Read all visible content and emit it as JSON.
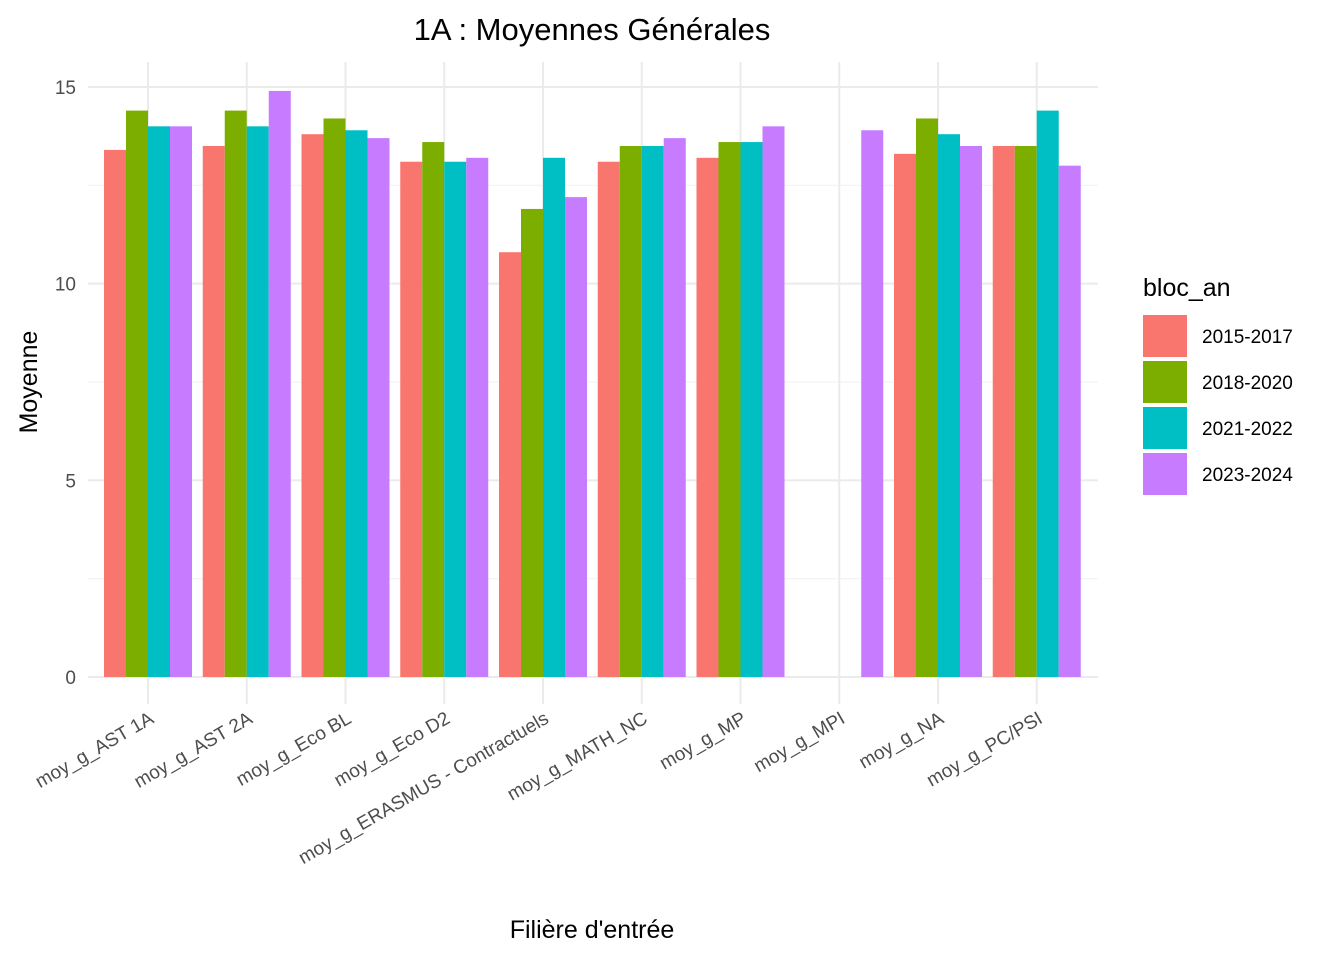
{
  "chart_data": {
    "type": "bar",
    "title": "1A : Moyennes Générales",
    "xlabel": "Filière d'entrée",
    "ylabel": "Moyenne",
    "categories": [
      "moy_g_AST 1A",
      "moy_g_AST 2A",
      "moy_g_Eco BL",
      "moy_g_Eco D2",
      "moy_g_ERASMUS - Contractuels",
      "moy_g_MATH_NC",
      "moy_g_MP",
      "moy_g_MPI",
      "moy_g_NA",
      "moy_g_PC/PSI"
    ],
    "series": [
      {
        "name": "2015-2017",
        "color": "#F8766D",
        "values": [
          13.4,
          13.5,
          13.8,
          13.1,
          10.8,
          13.1,
          13.2,
          null,
          13.3,
          13.5
        ]
      },
      {
        "name": "2018-2020",
        "color": "#7CAE00",
        "values": [
          14.4,
          14.4,
          14.2,
          13.6,
          11.9,
          13.5,
          13.6,
          null,
          14.2,
          13.5
        ]
      },
      {
        "name": "2021-2022",
        "color": "#00BFC4",
        "values": [
          14.0,
          14.0,
          13.9,
          13.1,
          13.2,
          13.5,
          13.6,
          null,
          13.8,
          14.4
        ]
      },
      {
        "name": "2023-2024",
        "color": "#C77CFF",
        "values": [
          14.0,
          14.9,
          13.7,
          13.2,
          12.2,
          13.7,
          14.0,
          13.9,
          13.5,
          13.0
        ]
      }
    ],
    "yticks": [
      0,
      5,
      10,
      15
    ],
    "ylim": [
      0,
      15
    ],
    "legend": {
      "title": "bloc_an",
      "position": "right"
    },
    "grid": true
  }
}
